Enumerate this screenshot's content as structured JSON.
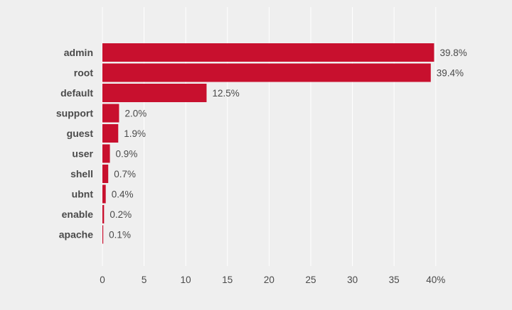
{
  "chart_data": {
    "type": "bar",
    "orientation": "horizontal",
    "categories": [
      "admin",
      "root",
      "default",
      "support",
      "guest",
      "user",
      "shell",
      "ubnt",
      "enable",
      "apache"
    ],
    "values": [
      39.8,
      39.4,
      12.5,
      2.0,
      1.9,
      0.9,
      0.7,
      0.4,
      0.2,
      0.1
    ],
    "value_labels": [
      "39.8%",
      "39.4%",
      "12.5%",
      "2.0%",
      "1.9%",
      "0.9%",
      "0.7%",
      "0.4%",
      "0.2%",
      "0.1%"
    ],
    "xticks": [
      "0",
      "5",
      "10",
      "15",
      "20",
      "25",
      "30",
      "35",
      "40%"
    ],
    "xlim": [
      0,
      40
    ],
    "grid": true,
    "colors": {
      "bar": "#c8102e",
      "background": "#efefef",
      "grid": "#ffffff",
      "text": "#4a4a4a"
    }
  }
}
